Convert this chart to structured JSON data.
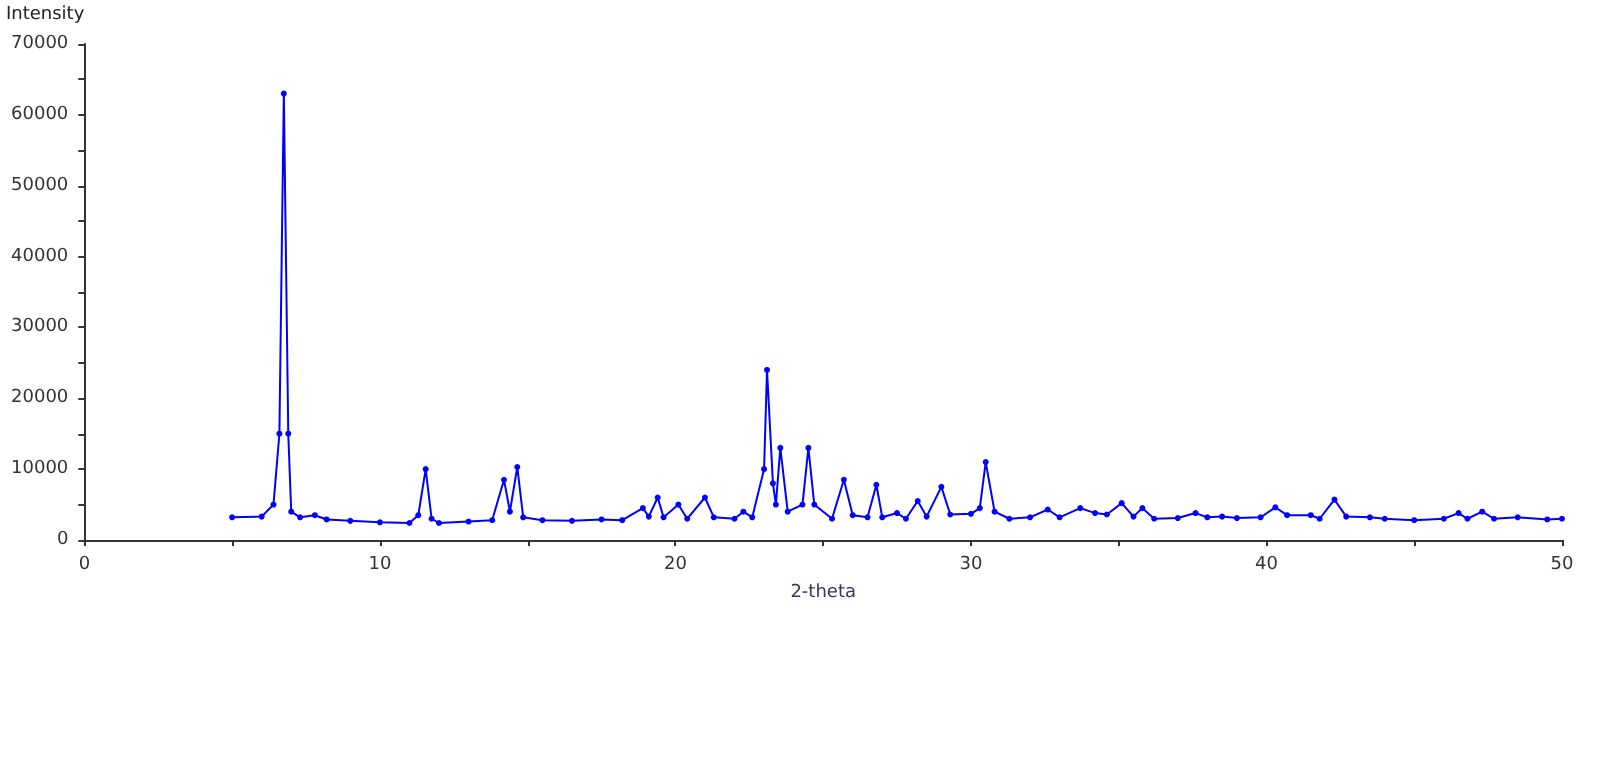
{
  "chart_data": {
    "type": "line",
    "xlabel": "2-theta",
    "ylabel": "Intensity",
    "xlim": [
      0,
      50
    ],
    "xticks": [
      0,
      {
        "value": 5,
        "label": null
      },
      10,
      {
        "value": 15,
        "label": null
      },
      20,
      {
        "value": 25,
        "label": null
      },
      30,
      {
        "value": 35,
        "label": null
      },
      40,
      {
        "value": 45,
        "label": null
      },
      50
    ],
    "ylim": [
      0,
      70000
    ],
    "yticks": [
      0,
      {
        "value": 5000,
        "label": null
      },
      10000,
      {
        "value": 15000,
        "label": null
      },
      20000,
      {
        "value": 25000,
        "label": null
      },
      30000,
      {
        "value": 35000,
        "label": null
      },
      40000,
      {
        "value": 45000,
        "label": null
      },
      50000,
      {
        "value": 55000,
        "label": null
      },
      60000,
      {
        "value": 65000,
        "label": null
      },
      70000
    ],
    "grid": false,
    "marker": "circle",
    "line_style": "solid",
    "series": [
      {
        "color": "#0000ff",
        "x": [
          5.0,
          6.0,
          6.4,
          6.6,
          6.75,
          6.9,
          7.0,
          7.3,
          7.8,
          8.2,
          9,
          10,
          11,
          11.3,
          11.55,
          11.75,
          12,
          13,
          13.8,
          14.2,
          14.4,
          14.65,
          14.85,
          15.5,
          16.5,
          17.5,
          18.2,
          18.9,
          19.1,
          19.4,
          19.6,
          20.1,
          20.4,
          21.0,
          21.3,
          22,
          22.3,
          22.6,
          23.0,
          23.1,
          23.3,
          23.4,
          23.55,
          23.8,
          24.3,
          24.5,
          24.7,
          25.3,
          25.7,
          26.0,
          26.5,
          26.8,
          27.0,
          27.5,
          27.8,
          28.2,
          28.5,
          29.0,
          29.3,
          30,
          30.3,
          30.5,
          30.8,
          31.3,
          32.0,
          32.6,
          33,
          33.7,
          34.2,
          34.6,
          35.1,
          35.5,
          35.8,
          36.2,
          37,
          37.6,
          38,
          38.5,
          39,
          39.8,
          40.3,
          40.7,
          41.5,
          41.8,
          42.3,
          42.7,
          43.5,
          44,
          45,
          46,
          46.5,
          46.8,
          47.3,
          47.7,
          48.5,
          49.5,
          50
        ],
        "values": [
          3200,
          3300,
          5000,
          15000,
          63000,
          15000,
          4000,
          3200,
          3500,
          2900,
          2700,
          2500,
          2400,
          3500,
          10000,
          3000,
          2400,
          2600,
          2800,
          8500,
          4000,
          10300,
          3200,
          2800,
          2700,
          2900,
          2800,
          4500,
          3300,
          6000,
          3200,
          5000,
          3000,
          6000,
          3200,
          3000,
          4000,
          3200,
          10000,
          24000,
          8000,
          5000,
          13000,
          4000,
          5000,
          13000,
          5000,
          3000,
          8500,
          3500,
          3200,
          7800,
          3200,
          3800,
          3000,
          5500,
          3300,
          7500,
          3600,
          3700,
          4500,
          11000,
          4000,
          3000,
          3200,
          4300,
          3200,
          4500,
          3800,
          3600,
          5200,
          3300,
          4500,
          3000,
          3100,
          3800,
          3200,
          3300,
          3100,
          3200,
          4600,
          3500,
          3500,
          3000,
          5700,
          3300,
          3200,
          3000,
          2800,
          3000,
          3800,
          3000,
          4000,
          3000,
          3200,
          2900,
          3000
        ]
      }
    ]
  }
}
